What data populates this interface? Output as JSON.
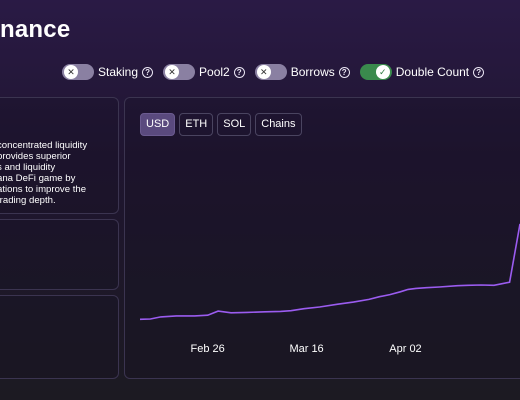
{
  "header": {
    "title": "nance"
  },
  "toggles": [
    {
      "label": "Staking",
      "on": false,
      "help": "?"
    },
    {
      "label": "Pool2",
      "on": false,
      "help": "?"
    },
    {
      "label": "Borrows",
      "on": false,
      "help": "?"
    },
    {
      "label": "Double Count",
      "on": true,
      "help": "?"
    }
  ],
  "description": {
    "lines": [
      "concentrated liquidity",
      "provides superior",
      "s and liquidity",
      "ana DeFi game by",
      "ations to improve the",
      "trading depth."
    ]
  },
  "units": {
    "active": "USD",
    "options": [
      "USD",
      "ETH",
      "SOL",
      "Chains"
    ]
  },
  "colors": {
    "line": "#9b5cf0",
    "accent": "#5a4a7e",
    "toggle_on": "#3a8a4d"
  },
  "chart_data": {
    "type": "line",
    "title": "",
    "xlabel": "",
    "ylabel": "",
    "x_ticks": [
      "Feb 26",
      "Mar 16",
      "Apr 02"
    ],
    "x": [
      0,
      4,
      8,
      14,
      21,
      26,
      30,
      35,
      41,
      48,
      54,
      58,
      63,
      69,
      76,
      82,
      88,
      92,
      96,
      100,
      103,
      106,
      110,
      115,
      122,
      126,
      131,
      136,
      142,
      146
    ],
    "series": [
      {
        "values": [
          0.2,
          0.3,
          0.9,
          1.2,
          1.2,
          1.4,
          2.6,
          2.1,
          2.2,
          2.4,
          2.5,
          2.7,
          3.3,
          3.8,
          4.6,
          5.2,
          6.0,
          6.8,
          7.4,
          8.2,
          8.9,
          9.2,
          9.4,
          9.6,
          10.0,
          10.1,
          10.2,
          10.1,
          11.0,
          28.0
        ]
      }
    ],
    "ylim": [
      0,
      30
    ],
    "grid": false,
    "legend": "none"
  }
}
